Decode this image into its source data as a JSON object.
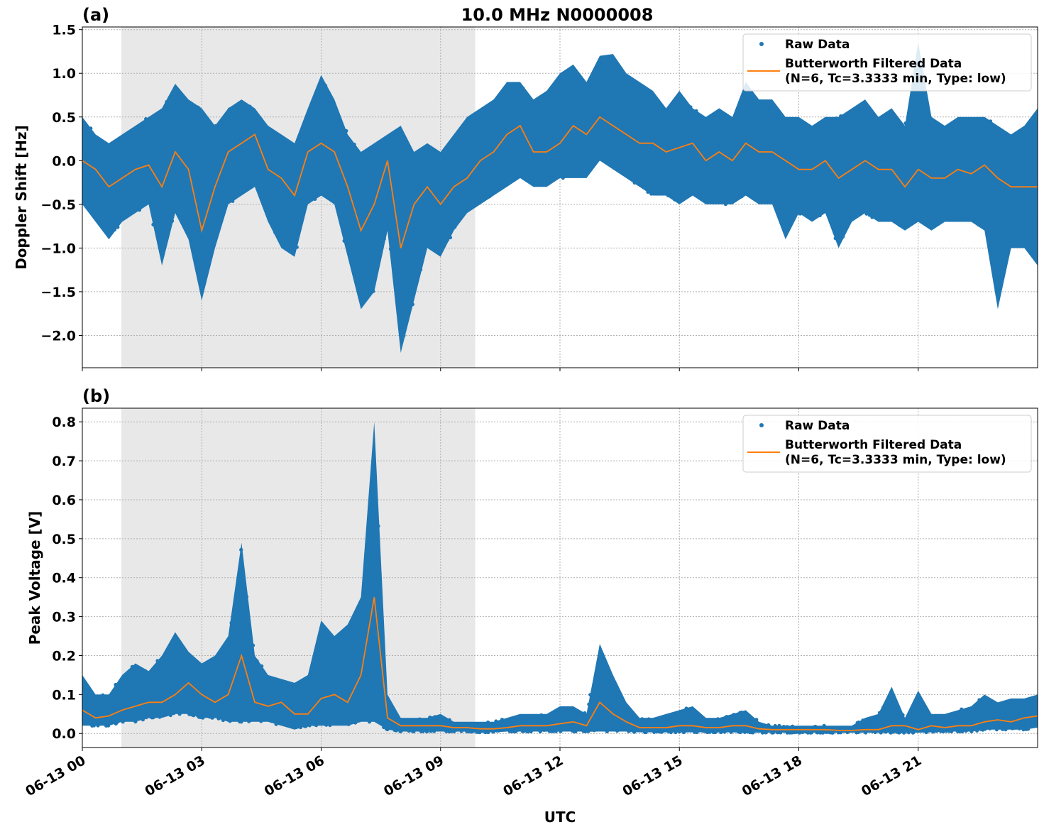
{
  "chart_data": [
    {
      "type": "scatter",
      "panel_label": "(a)",
      "title": "10.0 MHz N0000008",
      "xlabel": "",
      "ylabel": "Doppler Shift [Hz]",
      "xlim_hours_utc": [
        0,
        24
      ],
      "ylim": [
        -2.37,
        1.53
      ],
      "yticks": [
        1.5,
        1.0,
        0.5,
        0.0,
        -0.5,
        -1.0,
        -1.5,
        -2.0
      ],
      "ytick_labels": [
        "1.5",
        "1.0",
        "0.5",
        "0.0",
        "−0.5",
        "−1.0",
        "−1.5",
        "−2.0"
      ],
      "grid": true,
      "shaded_interval_hours": [
        0.98,
        9.87
      ],
      "legend_placement": "top-right",
      "legend": [
        "Raw Data",
        "Butterworth Filtered Data",
        "(N=6, Tc=3.3333 min, Type: low)"
      ],
      "series": [
        {
          "name": "Butterworth Filtered Data (N=6, Tc=3.3333 min, Type: low)",
          "kind": "line",
          "color": "#ff7f0e",
          "values": [
            0.0,
            -0.1,
            -0.3,
            -0.2,
            -0.1,
            -0.05,
            -0.3,
            0.1,
            -0.1,
            -0.8,
            -0.3,
            0.1,
            0.2,
            0.3,
            -0.1,
            -0.2,
            -0.4,
            0.1,
            0.2,
            0.1,
            -0.3,
            -0.8,
            -0.5,
            0.0,
            -1.0,
            -0.5,
            -0.3,
            -0.5,
            -0.3,
            -0.2,
            0.0,
            0.1,
            0.3,
            0.4,
            0.1,
            0.1,
            0.2,
            0.4,
            0.3,
            0.5,
            0.4,
            0.3,
            0.2,
            0.2,
            0.1,
            0.15,
            0.2,
            0.0,
            0.1,
            0.0,
            0.2,
            0.1,
            0.1,
            0.0,
            -0.1,
            -0.1,
            0.0,
            -0.2,
            -0.1,
            0.0,
            -0.1,
            -0.1,
            -0.3,
            -0.1,
            -0.2,
            -0.2,
            -0.1,
            -0.15,
            -0.05,
            -0.2,
            -0.3,
            -0.3,
            -0.3
          ]
        },
        {
          "name": "Raw Data",
          "kind": "scatter-envelope",
          "color": "#1f77b4",
          "max": [
            0.5,
            0.3,
            0.2,
            0.3,
            0.4,
            0.5,
            0.6,
            0.88,
            0.7,
            0.6,
            0.4,
            0.6,
            0.7,
            0.6,
            0.4,
            0.3,
            0.2,
            0.6,
            0.98,
            0.7,
            0.3,
            0.1,
            0.2,
            0.3,
            0.4,
            0.1,
            0.2,
            0.1,
            0.3,
            0.5,
            0.6,
            0.7,
            0.9,
            0.9,
            0.7,
            0.8,
            1.0,
            1.1,
            0.9,
            1.2,
            1.22,
            1.0,
            0.9,
            0.8,
            0.6,
            0.8,
            0.6,
            0.5,
            0.6,
            0.5,
            0.9,
            0.7,
            0.7,
            0.5,
            0.5,
            0.4,
            0.5,
            0.5,
            0.6,
            0.7,
            0.5,
            0.6,
            0.4,
            1.35,
            0.5,
            0.4,
            0.5,
            0.5,
            0.5,
            0.4,
            0.3,
            0.4,
            0.6
          ],
          "min": [
            -0.5,
            -0.7,
            -0.9,
            -0.7,
            -0.6,
            -0.5,
            -1.2,
            -0.6,
            -0.9,
            -1.6,
            -1.0,
            -0.5,
            -0.4,
            -0.3,
            -0.7,
            -1.0,
            -1.1,
            -0.5,
            -0.4,
            -0.5,
            -1.1,
            -1.7,
            -1.5,
            -0.8,
            -2.2,
            -1.6,
            -1.0,
            -1.1,
            -0.8,
            -0.6,
            -0.5,
            -0.4,
            -0.3,
            -0.2,
            -0.3,
            -0.3,
            -0.2,
            -0.2,
            -0.2,
            0.0,
            -0.1,
            -0.2,
            -0.3,
            -0.4,
            -0.4,
            -0.5,
            -0.4,
            -0.5,
            -0.5,
            -0.5,
            -0.4,
            -0.5,
            -0.5,
            -0.9,
            -0.6,
            -0.7,
            -0.6,
            -1.0,
            -0.7,
            -0.6,
            -0.7,
            -0.7,
            -0.8,
            -0.7,
            -0.8,
            -0.7,
            -0.7,
            -0.7,
            -0.8,
            -1.7,
            -1.0,
            -1.0,
            -1.2
          ]
        }
      ]
    },
    {
      "type": "scatter",
      "panel_label": "(b)",
      "title": "",
      "xlabel": "UTC",
      "ylabel": "Peak Voltage [V]",
      "xlim_hours_utc": [
        0,
        24
      ],
      "ylim": [
        -0.036,
        0.835
      ],
      "yticks": [
        0.8,
        0.7,
        0.6,
        0.5,
        0.4,
        0.3,
        0.2,
        0.1,
        0.0
      ],
      "ytick_labels": [
        "0.8",
        "0.7",
        "0.6",
        "0.5",
        "0.4",
        "0.3",
        "0.2",
        "0.1",
        "0.0"
      ],
      "xticks_hours": [
        0,
        3,
        6,
        9,
        12,
        15,
        18,
        21
      ],
      "xtick_labels": [
        "06-13 00",
        "06-13 03",
        "06-13 06",
        "06-13 09",
        "06-13 12",
        "06-13 15",
        "06-13 18",
        "06-13 21"
      ],
      "grid": true,
      "shaded_interval_hours": [
        0.98,
        9.87
      ],
      "legend_placement": "top-right",
      "legend": [
        "Raw Data",
        "Butterworth Filtered Data",
        "(N=6, Tc=3.3333 min, Type: low)"
      ],
      "series": [
        {
          "name": "Butterworth Filtered Data (N=6, Tc=3.3333 min, Type: low)",
          "kind": "line",
          "color": "#ff7f0e",
          "values": [
            0.06,
            0.04,
            0.045,
            0.06,
            0.07,
            0.08,
            0.08,
            0.1,
            0.13,
            0.1,
            0.08,
            0.1,
            0.2,
            0.08,
            0.07,
            0.08,
            0.05,
            0.05,
            0.09,
            0.1,
            0.08,
            0.15,
            0.35,
            0.04,
            0.02,
            0.02,
            0.02,
            0.02,
            0.015,
            0.015,
            0.012,
            0.012,
            0.015,
            0.02,
            0.02,
            0.02,
            0.025,
            0.03,
            0.02,
            0.08,
            0.05,
            0.03,
            0.015,
            0.015,
            0.015,
            0.02,
            0.02,
            0.015,
            0.015,
            0.02,
            0.02,
            0.012,
            0.01,
            0.01,
            0.01,
            0.01,
            0.01,
            0.008,
            0.008,
            0.01,
            0.01,
            0.02,
            0.02,
            0.01,
            0.02,
            0.015,
            0.02,
            0.02,
            0.03,
            0.035,
            0.03,
            0.04,
            0.045
          ]
        },
        {
          "name": "Raw Data",
          "kind": "scatter-envelope",
          "color": "#1f77b4",
          "max": [
            0.15,
            0.1,
            0.1,
            0.15,
            0.18,
            0.16,
            0.2,
            0.26,
            0.21,
            0.18,
            0.2,
            0.25,
            0.49,
            0.2,
            0.15,
            0.14,
            0.13,
            0.15,
            0.29,
            0.25,
            0.28,
            0.35,
            0.8,
            0.1,
            0.04,
            0.04,
            0.04,
            0.05,
            0.03,
            0.03,
            0.03,
            0.03,
            0.04,
            0.05,
            0.05,
            0.05,
            0.07,
            0.07,
            0.05,
            0.23,
            0.15,
            0.08,
            0.04,
            0.04,
            0.05,
            0.06,
            0.07,
            0.04,
            0.04,
            0.05,
            0.06,
            0.03,
            0.02,
            0.02,
            0.02,
            0.02,
            0.02,
            0.02,
            0.02,
            0.04,
            0.05,
            0.12,
            0.04,
            0.11,
            0.05,
            0.05,
            0.06,
            0.07,
            0.1,
            0.08,
            0.09,
            0.09,
            0.1
          ],
          "min": [
            0.02,
            0.02,
            0.02,
            0.03,
            0.03,
            0.04,
            0.04,
            0.05,
            0.05,
            0.04,
            0.04,
            0.03,
            0.03,
            0.03,
            0.03,
            0.02,
            0.01,
            0.02,
            0.02,
            0.02,
            0.02,
            0.03,
            0.03,
            0.01,
            0.005,
            0.005,
            0.005,
            0.005,
            0.005,
            0.005,
            0.003,
            0.003,
            0.005,
            0.005,
            0.005,
            0.005,
            0.005,
            0.005,
            0.005,
            0.005,
            0.005,
            0.005,
            0.003,
            0.003,
            0.003,
            0.003,
            0.003,
            0.003,
            0.003,
            0.003,
            0.003,
            0.002,
            0.002,
            0.002,
            0.002,
            0.002,
            0.002,
            0.002,
            0.002,
            0.002,
            0.002,
            0.002,
            0.002,
            0.002,
            0.003,
            0.005,
            0.005,
            0.005,
            0.01,
            0.01,
            0.01,
            0.01,
            0.015
          ]
        }
      ]
    }
  ]
}
